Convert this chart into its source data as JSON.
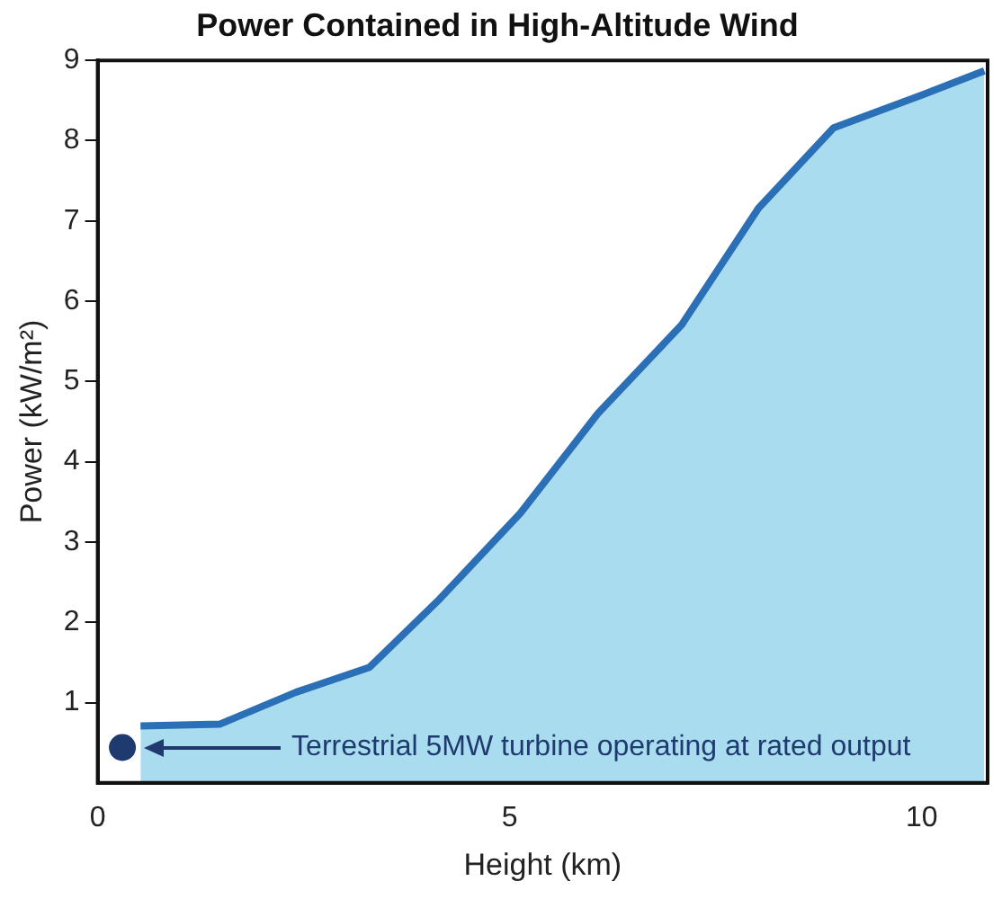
{
  "chart_data": {
    "type": "area",
    "title": "Power Contained in High-Altitude Wind",
    "xlabel": "Height (km)",
    "ylabel": "Power (kW/m²)",
    "xlim": [
      0,
      10.8
    ],
    "xticks": [
      0,
      5,
      10
    ],
    "ylim": [
      0,
      9
    ],
    "yticks": [
      1,
      2,
      3,
      4,
      5,
      6,
      7,
      8,
      9
    ],
    "grid": false,
    "legend": false,
    "series": [
      {
        "color": "#2b6fb6",
        "x": [
          0.52,
          1.48,
          2.41,
          3.3,
          4.15,
          5.13,
          6.07,
          7.09,
          8.02,
          8.93,
          9.98,
          10.76
        ],
        "values": [
          0.71,
          0.73,
          1.13,
          1.44,
          2.29,
          3.36,
          4.6,
          5.71,
          7.16,
          8.16,
          8.56,
          8.87
        ]
      },
      {
        "type": "scatter",
        "color": "#1f3a6e",
        "x": [
          0.3
        ],
        "values": [
          0.44
        ]
      }
    ],
    "annotations": [
      "Terrestrial 5MW turbine operating at rated output"
    ]
  }
}
